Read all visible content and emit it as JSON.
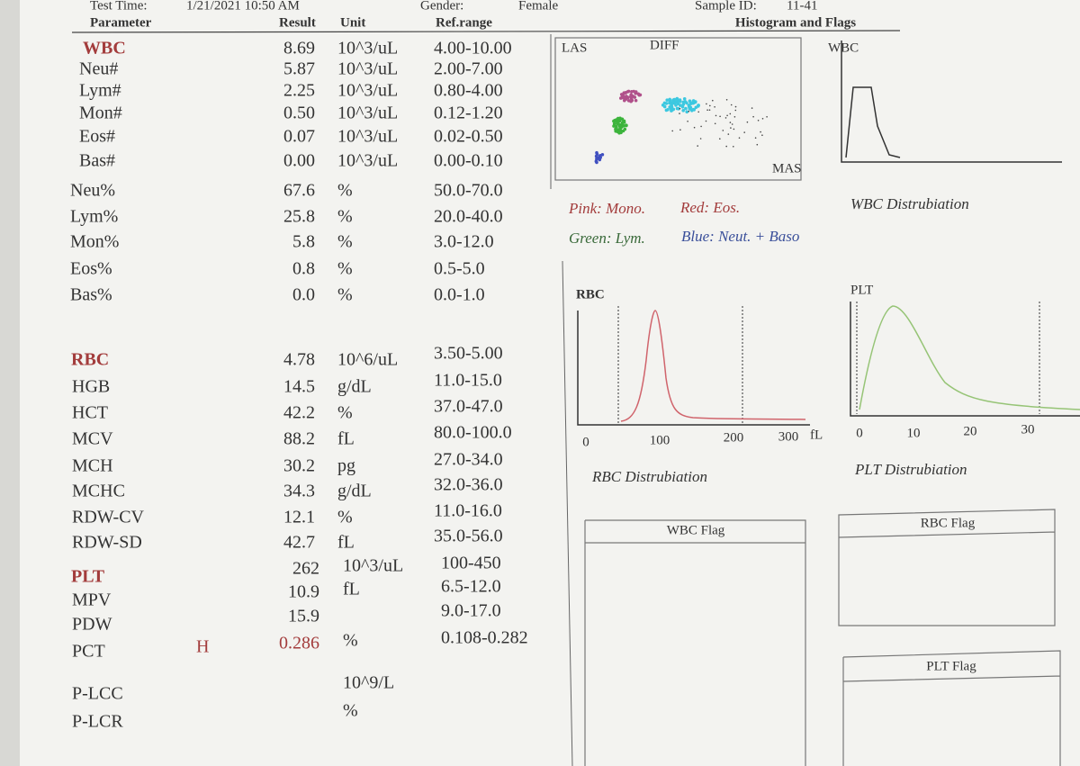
{
  "header": {
    "test_time_label": "Test Time:",
    "test_time": "1/21/2021 10:50 AM",
    "gender_label": "Gender:",
    "gender": "Female",
    "sample_id_label": "Sample ID:",
    "sample_id": "11-41"
  },
  "table": {
    "columns": [
      "Parameter",
      "Result",
      "Unit",
      "Ref.range"
    ],
    "rows": [
      {
        "name": "WBC",
        "result": "8.69",
        "unit": "10^3/uL",
        "ref": "4.00-10.00"
      },
      {
        "name": "Neu#",
        "result": "5.87",
        "unit": "10^3/uL",
        "ref": "2.00-7.00"
      },
      {
        "name": "Lym#",
        "result": "2.25",
        "unit": "10^3/uL",
        "ref": "0.80-4.00"
      },
      {
        "name": "Mon#",
        "result": "0.50",
        "unit": "10^3/uL",
        "ref": "0.12-1.20"
      },
      {
        "name": "Eos#",
        "result": "0.07",
        "unit": "10^3/uL",
        "ref": "0.02-0.50"
      },
      {
        "name": "Bas#",
        "result": "0.00",
        "unit": "10^3/uL",
        "ref": "0.00-0.10"
      },
      {
        "name": "Neu%",
        "result": "67.6",
        "unit": "%",
        "ref": "50.0-70.0"
      },
      {
        "name": "Lym%",
        "result": "25.8",
        "unit": "%",
        "ref": "20.0-40.0"
      },
      {
        "name": "Mon%",
        "result": "5.8",
        "unit": "%",
        "ref": "3.0-12.0"
      },
      {
        "name": "Eos%",
        "result": "0.8",
        "unit": "%",
        "ref": "0.5-5.0"
      },
      {
        "name": "Bas%",
        "result": "0.0",
        "unit": "%",
        "ref": "0.0-1.0"
      },
      {
        "name": "RBC",
        "result": "4.78",
        "unit": "10^6/uL",
        "ref": "3.50-5.00"
      },
      {
        "name": "HGB",
        "result": "14.5",
        "unit": "g/dL",
        "ref": "11.0-15.0"
      },
      {
        "name": "HCT",
        "result": "42.2",
        "unit": "%",
        "ref": "37.0-47.0"
      },
      {
        "name": "MCV",
        "result": "88.2",
        "unit": "fL",
        "ref": "80.0-100.0"
      },
      {
        "name": "MCH",
        "result": "30.2",
        "unit": "pg",
        "ref": "27.0-34.0"
      },
      {
        "name": "MCHC",
        "result": "34.3",
        "unit": "g/dL",
        "ref": "32.0-36.0"
      },
      {
        "name": "RDW-CV",
        "result": "12.1",
        "unit": "%",
        "ref": "11.0-16.0"
      },
      {
        "name": "RDW-SD",
        "result": "42.7",
        "unit": "fL",
        "ref": "35.0-56.0"
      },
      {
        "name": "PLT",
        "result": "262",
        "unit": "10^3/uL",
        "ref": "100-450"
      },
      {
        "name": "MPV",
        "result": "10.9",
        "unit": "fL",
        "ref": "6.5-12.0"
      },
      {
        "name": "PDW",
        "result": "15.9",
        "ref": "9.0-17.0"
      },
      {
        "name": "PCT",
        "flag": "H",
        "result": "0.286",
        "unit": "%",
        "ref": "0.108-0.282"
      },
      {
        "name": "P-LCC",
        "unit": "10^9/L"
      },
      {
        "name": "P-LCR",
        "unit": "%"
      }
    ]
  },
  "histograms": {
    "title": "Histogram and Flags",
    "scatter": {
      "labels": [
        "LAS",
        "DIFF",
        "MAS"
      ]
    },
    "legend": [
      "Pink: Mono.",
      "Red: Eos.",
      "Green: Lym.",
      "Blue: Neut. + Baso"
    ],
    "wbc": {
      "label": "WBC",
      "caption": "WBC Distrubiation"
    },
    "rbc": {
      "label": "RBC",
      "ticks": [
        "0",
        "100",
        "200",
        "300"
      ],
      "unit": "fL",
      "caption": "RBC Distrubiation"
    },
    "plt": {
      "label": "PLT",
      "ticks": [
        "0",
        "10",
        "20",
        "30"
      ],
      "caption": "PLT Distrubiation"
    }
  },
  "flags": [
    "WBC Flag",
    "RBC Flag",
    "PLT Flag"
  ]
}
